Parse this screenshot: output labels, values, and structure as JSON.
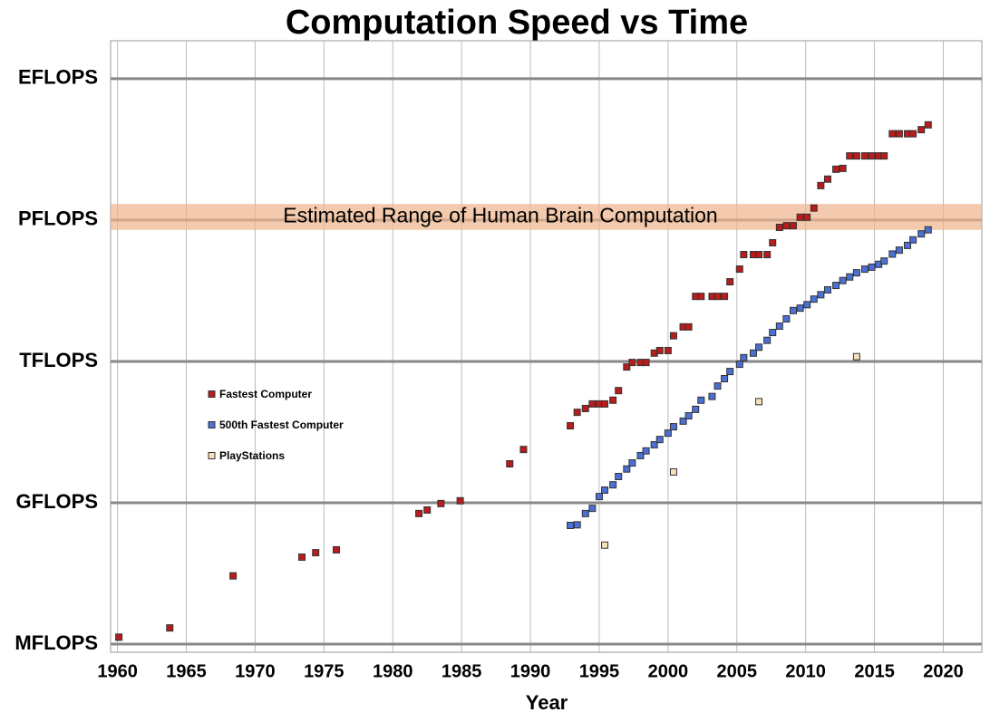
{
  "chart_data": {
    "type": "scatter",
    "title": "Computation Speed vs Time",
    "x_label": "Year",
    "log_y": true,
    "grid": true,
    "legend": "center-left",
    "xlim": [
      1959.5,
      2022.8
    ],
    "xticks": [
      1960,
      1965,
      1970,
      1975,
      1980,
      1985,
      1990,
      1995,
      2000,
      2005,
      2010,
      2015,
      2020
    ],
    "ylim": [
      670000.0,
      6.4e+18
    ],
    "yticks": [
      {
        "value": 1000000.0,
        "label": "MFLOPS"
      },
      {
        "value": 1000000000.0,
        "label": "GFLOPS"
      },
      {
        "value": 1000000000000.0,
        "label": "TFLOPS"
      },
      {
        "value": 1000000000000000.0,
        "label": "PFLOPS"
      },
      {
        "value": 1e+18,
        "label": "EFLOPS"
      }
    ],
    "band": {
      "label": "Estimated Range of Human Brain Computation",
      "range": [
        620000000000000.0,
        2200000000000000.0
      ],
      "color": "#f0b48c"
    },
    "series": [
      {
        "name": "Fastest Computer",
        "color": "#b81c1c",
        "x": [
          1960.1,
          1963.8,
          1968.4,
          1973.4,
          1974.4,
          1975.9,
          1981.9,
          1982.5,
          1983.5,
          1984.9,
          1988.5,
          1989.5,
          1992.9,
          1993.4,
          1994.0,
          1994.5,
          1995.0,
          1995.4,
          1996.0,
          1996.4,
          1997.0,
          1997.4,
          1998.0,
          1998.4,
          1999.0,
          1999.4,
          2000.0,
          2000.4,
          2001.1,
          2001.5,
          2002.0,
          2002.4,
          2003.2,
          2003.6,
          2004.1,
          2004.5,
          2005.2,
          2005.5,
          2006.2,
          2006.6,
          2007.2,
          2007.6,
          2008.1,
          2008.6,
          2009.1,
          2009.6,
          2010.1,
          2010.6,
          2011.1,
          2011.6,
          2012.2,
          2012.7,
          2013.2,
          2013.7,
          2014.3,
          2014.8,
          2015.3,
          2015.7,
          2016.3,
          2016.8,
          2017.4,
          2017.8,
          2018.4,
          2018.9
        ],
        "values": [
          1400000.0,
          2200000.0,
          28000000.0,
          70000000.0,
          87000000.0,
          100000000.0,
          590000000.0,
          700000000.0,
          960000000.0,
          1100000000.0,
          6700000000.0,
          13500000000.0,
          43000000000.0,
          83000000000.0,
          100000000000.0,
          125000000000.0,
          125000000000.0,
          125000000000.0,
          150000000000.0,
          240000000000.0,
          760000000000.0,
          950000000000.0,
          950000000000.0,
          950000000000.0,
          1500000000000.0,
          1700000000000.0,
          1700000000000.0,
          3500000000000.0,
          5400000000000.0,
          5400000000000.0,
          24000000000000.0,
          24000000000000.0,
          24000000000000.0,
          24000000000000.0,
          24000000000000.0,
          49000000000000.0,
          91000000000000.0,
          185000000000000.0,
          185000000000000.0,
          185000000000000.0,
          185000000000000.0,
          330000000000000.0,
          700000000000000.0,
          760000000000000.0,
          760000000000000.0,
          1150000000000000.0,
          1150000000000000.0,
          1800000000000000.0,
          5400000000000000.0,
          7400000000000000.0,
          1.2e+16,
          1.25e+16,
          2.3e+16,
          2.3e+16,
          2.3e+16,
          2.3e+16,
          2.3e+16,
          2.3e+16,
          6.8e+16,
          6.8e+16,
          6.8e+16,
          6.8e+16,
          8.3e+16,
          1.05e+17
        ]
      },
      {
        "name": "500th Fastest Computer",
        "color": "#4b6fd2",
        "x": [
          1992.9,
          1993.4,
          1994.0,
          1994.5,
          1995.0,
          1995.4,
          1996.0,
          1996.4,
          1997.0,
          1997.4,
          1998.0,
          1998.4,
          1999.0,
          1999.4,
          2000.0,
          2000.4,
          2001.1,
          2001.5,
          2002.0,
          2002.4,
          2003.2,
          2003.6,
          2004.1,
          2004.5,
          2005.2,
          2005.5,
          2006.2,
          2006.6,
          2007.2,
          2007.6,
          2008.1,
          2008.6,
          2009.1,
          2009.6,
          2010.1,
          2010.6,
          2011.1,
          2011.6,
          2012.2,
          2012.7,
          2013.2,
          2013.7,
          2014.3,
          2014.8,
          2015.3,
          2015.7,
          2016.3,
          2016.8,
          2017.4,
          2017.8,
          2018.4,
          2018.9
        ],
        "values": [
          330000000.0,
          340000000.0,
          590000000.0,
          760000000.0,
          1350000000.0,
          1850000000.0,
          2400000000.0,
          3600000000.0,
          5200000000.0,
          7000000000.0,
          10000000000.0,
          12600000000.0,
          17000000000.0,
          22000000000.0,
          30000000000.0,
          41000000000.0,
          54000000000.0,
          70000000000.0,
          96000000000.0,
          150000000000.0,
          180000000000.0,
          300000000000.0,
          430000000000.0,
          610000000000.0,
          870000000000.0,
          1200000000000.0,
          1500000000000.0,
          2000000000000.0,
          2800000000000.0,
          4100000000000.0,
          5600000000000.0,
          8000000000000.0,
          12000000000000.0,
          13500000000000.0,
          16000000000000.0,
          21000000000000.0,
          26000000000000.0,
          33000000000000.0,
          41000000000000.0,
          52000000000000.0,
          62000000000000.0,
          76000000000000.0,
          91000000000000.0,
          100000000000000.0,
          115000000000000.0,
          135000000000000.0,
          190000000000000.0,
          230000000000000.0,
          290000000000000.0,
          380000000000000.0,
          510000000000000.0,
          620000000000000.0
        ]
      },
      {
        "name": "PlayStations",
        "color": "#f7dfb8",
        "x": [
          1995.4,
          2000.4,
          2006.6,
          2013.7
        ],
        "values": [
          126000000.0,
          4500000000.0,
          140000000000.0,
          1260000000000.0
        ]
      }
    ]
  }
}
